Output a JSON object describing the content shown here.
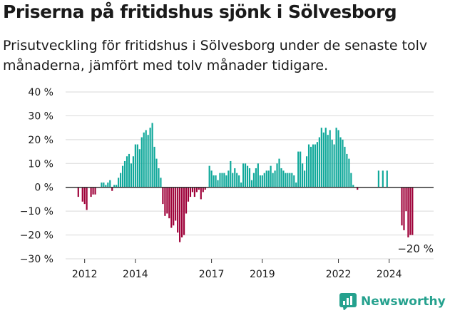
{
  "title": "Priserna på fritidshus sjönk i Sölvesborg",
  "subtitle": "Prisutveckling för fritidshus i Sölvesborg under de senaste tolv månaderna, jämfört med tolv månader tidigare.",
  "brand": "Newsworthy",
  "colors": {
    "positive": "#0fa89a",
    "negative": "#9e0038",
    "grid": "#d9d9d9",
    "zero": "#333333",
    "brand": "#25a18e"
  },
  "chart_data": {
    "type": "bar",
    "ylim": [
      -30,
      40
    ],
    "y_ticks": [
      40,
      30,
      20,
      10,
      0,
      -10,
      -20,
      -30
    ],
    "y_tick_labels": [
      "40 %",
      "30 %",
      "20 %",
      "10 %",
      "0 %",
      "−10 %",
      "−20 %",
      "−30 %"
    ],
    "x_ticks": [
      2012,
      2014,
      2017,
      2019,
      2022,
      2024
    ],
    "x_tick_labels": [
      "2012",
      "2014",
      "2017",
      "2019",
      "2022",
      "2024"
    ],
    "annotation": "−20 %",
    "series": [
      {
        "values": [
          [
            2011.75,
            -4
          ],
          [
            2011.917,
            -6
          ],
          [
            2012.0,
            -7
          ],
          [
            2012.083,
            -9.5
          ],
          [
            2012.25,
            -4
          ],
          [
            2012.333,
            -3
          ],
          [
            2012.417,
            -3
          ],
          [
            2012.667,
            2
          ],
          [
            2012.75,
            2
          ],
          [
            2012.833,
            1
          ],
          [
            2012.917,
            2
          ],
          [
            2013.0,
            3
          ],
          [
            2013.083,
            -1.5
          ],
          [
            2013.167,
            1
          ],
          [
            2013.25,
            1
          ],
          [
            2013.333,
            4
          ],
          [
            2013.417,
            6
          ],
          [
            2013.5,
            9
          ],
          [
            2013.583,
            11
          ],
          [
            2013.667,
            13
          ],
          [
            2013.75,
            14
          ],
          [
            2013.833,
            10
          ],
          [
            2013.917,
            13
          ],
          [
            2014.0,
            18
          ],
          [
            2014.083,
            18
          ],
          [
            2014.167,
            16
          ],
          [
            2014.25,
            21
          ],
          [
            2014.333,
            23
          ],
          [
            2014.417,
            24
          ],
          [
            2014.5,
            22
          ],
          [
            2014.583,
            25
          ],
          [
            2014.667,
            27
          ],
          [
            2014.75,
            17
          ],
          [
            2014.833,
            12
          ],
          [
            2014.917,
            8
          ],
          [
            2015.0,
            4
          ],
          [
            2015.083,
            -7
          ],
          [
            2015.167,
            -12
          ],
          [
            2015.25,
            -11
          ],
          [
            2015.333,
            -13
          ],
          [
            2015.417,
            -17
          ],
          [
            2015.5,
            -16
          ],
          [
            2015.583,
            -14
          ],
          [
            2015.667,
            -19
          ],
          [
            2015.75,
            -23
          ],
          [
            2015.833,
            -21
          ],
          [
            2015.917,
            -20
          ],
          [
            2016.0,
            -11
          ],
          [
            2016.083,
            -6
          ],
          [
            2016.167,
            -4
          ],
          [
            2016.25,
            -2
          ],
          [
            2016.333,
            -4
          ],
          [
            2016.417,
            -2
          ],
          [
            2016.5,
            -1
          ],
          [
            2016.583,
            -5
          ],
          [
            2016.667,
            -2
          ],
          [
            2016.75,
            -1
          ],
          [
            2016.917,
            9
          ],
          [
            2017.0,
            7
          ],
          [
            2017.083,
            5
          ],
          [
            2017.167,
            5
          ],
          [
            2017.25,
            3
          ],
          [
            2017.333,
            6
          ],
          [
            2017.417,
            6
          ],
          [
            2017.5,
            6
          ],
          [
            2017.583,
            5
          ],
          [
            2017.667,
            7
          ],
          [
            2017.75,
            11
          ],
          [
            2017.833,
            6
          ],
          [
            2017.917,
            8
          ],
          [
            2018.0,
            6
          ],
          [
            2018.083,
            5
          ],
          [
            2018.167,
            2
          ],
          [
            2018.25,
            10
          ],
          [
            2018.333,
            10
          ],
          [
            2018.417,
            9
          ],
          [
            2018.5,
            8
          ],
          [
            2018.583,
            3
          ],
          [
            2018.667,
            6
          ],
          [
            2018.75,
            8
          ],
          [
            2018.833,
            10
          ],
          [
            2018.917,
            5
          ],
          [
            2019.0,
            5
          ],
          [
            2019.083,
            6
          ],
          [
            2019.167,
            7
          ],
          [
            2019.25,
            7
          ],
          [
            2019.333,
            9
          ],
          [
            2019.417,
            6
          ],
          [
            2019.5,
            7
          ],
          [
            2019.583,
            10
          ],
          [
            2019.667,
            12
          ],
          [
            2019.75,
            8
          ],
          [
            2019.833,
            7
          ],
          [
            2019.917,
            6
          ],
          [
            2020.0,
            6
          ],
          [
            2020.083,
            6
          ],
          [
            2020.167,
            6
          ],
          [
            2020.25,
            5
          ],
          [
            2020.333,
            2
          ],
          [
            2020.417,
            15
          ],
          [
            2020.5,
            15
          ],
          [
            2020.583,
            10
          ],
          [
            2020.667,
            7
          ],
          [
            2020.75,
            13
          ],
          [
            2020.833,
            18
          ],
          [
            2020.917,
            17
          ],
          [
            2021.0,
            18
          ],
          [
            2021.083,
            18
          ],
          [
            2021.167,
            19
          ],
          [
            2021.25,
            21
          ],
          [
            2021.333,
            25
          ],
          [
            2021.417,
            23
          ],
          [
            2021.5,
            25
          ],
          [
            2021.583,
            22
          ],
          [
            2021.667,
            24
          ],
          [
            2021.75,
            20
          ],
          [
            2021.833,
            18
          ],
          [
            2021.917,
            25
          ],
          [
            2022.0,
            24
          ],
          [
            2022.083,
            21
          ],
          [
            2022.167,
            20
          ],
          [
            2022.25,
            17
          ],
          [
            2022.333,
            14
          ],
          [
            2022.417,
            12
          ],
          [
            2022.5,
            6
          ],
          [
            2022.583,
            1
          ],
          [
            2022.75,
            -1
          ],
          [
            2023.583,
            7
          ],
          [
            2023.75,
            7
          ],
          [
            2023.917,
            7
          ],
          [
            2024.5,
            -16
          ],
          [
            2024.583,
            -18
          ],
          [
            2024.667,
            -10
          ],
          [
            2024.75,
            -21
          ],
          [
            2024.833,
            -20
          ],
          [
            2024.917,
            -20
          ]
        ]
      }
    ]
  }
}
